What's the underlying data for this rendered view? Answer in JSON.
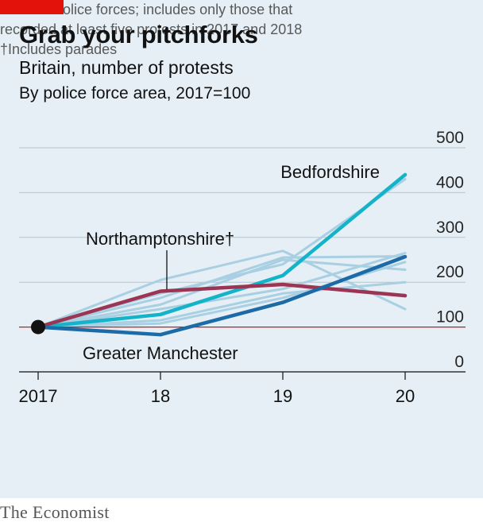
{
  "header": {
    "title": "Grab your pitchforks",
    "subtitle": "Britain, number of protests",
    "unit": "By police force area, 2017=100"
  },
  "footer": {
    "source_line1": "Source: Police forces; includes only those that",
    "source_line2": "recorded at least five protests in 2017 and 2018",
    "source_line3": "†Includes parades",
    "brand": "The Economist"
  },
  "colors": {
    "background": "#e5eff5",
    "grid": "#b7c6d0",
    "baseline": "#e3120b",
    "other_forces": "#a9cfe3",
    "bedfordshire": "#15b3c9",
    "northamptonshire": "#9c3453",
    "greater_manchester": "#1c6aa6",
    "accent_tab": "#e3120b"
  },
  "chart_data": {
    "type": "line",
    "x": [
      "2017",
      "18",
      "19",
      "20"
    ],
    "ylim": [
      0,
      500
    ],
    "yticks": [
      0,
      100,
      200,
      300,
      400,
      500
    ],
    "baseline": 100,
    "grid": true,
    "start_marker": {
      "x": "2017",
      "y": 100
    },
    "highlighted": [
      {
        "name": "Bedfordshire",
        "values": [
          100,
          128,
          215,
          440
        ],
        "color_key": "bedfordshire"
      },
      {
        "name": "Northamptonshire†",
        "values": [
          100,
          180,
          195,
          170
        ],
        "color_key": "northamptonshire"
      },
      {
        "name": "Greater Manchester",
        "values": [
          100,
          83,
          155,
          257
        ],
        "color_key": "greater_manchester"
      }
    ],
    "others": [
      {
        "values": [
          100,
          205,
          270,
          140
        ]
      },
      {
        "values": [
          100,
          175,
          240,
          430
        ]
      },
      {
        "values": [
          100,
          165,
          255,
          258
        ]
      },
      {
        "values": [
          100,
          150,
          250,
          228
        ]
      },
      {
        "values": [
          100,
          140,
          185,
          265
        ]
      },
      {
        "values": [
          100,
          115,
          175,
          200
        ]
      },
      {
        "values": [
          100,
          108,
          165,
          245
        ]
      }
    ]
  }
}
